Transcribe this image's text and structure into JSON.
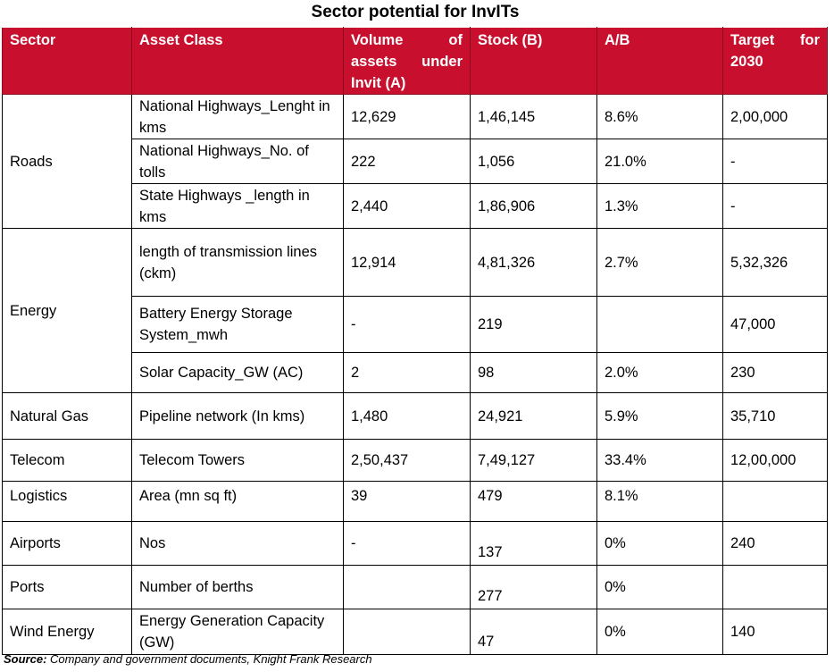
{
  "title": "Sector potential for InvITs",
  "headers": {
    "sector": "Sector",
    "asset_class": "Asset Class",
    "volume_line1": "Volume of",
    "volume_line2": "assets under",
    "volume_line3": "Invit (A)",
    "stock": "Stock (B)",
    "ratio": "A/B",
    "target_line1": "Target for",
    "target_line2": "2030"
  },
  "sectors": {
    "roads": "Roads",
    "energy": "Energy",
    "natural_gas": "Natural Gas",
    "telecom": "Telecom",
    "logistics": "Logistics",
    "airports": "Airports",
    "ports": "Ports",
    "wind_energy": "Wind Energy"
  },
  "rows": [
    {
      "asset": "National Highways_Lenght in kms",
      "volume": "12,629",
      "stock": "1,46,145",
      "ratio": "8.6%",
      "target": "2,00,000"
    },
    {
      "asset": "National Highways_No. of tolls",
      "volume": "222",
      "stock": "1,056",
      "ratio": "21.0%",
      "target": "-"
    },
    {
      "asset": "State Highways _length in kms",
      "volume": "2,440",
      "stock": "1,86,906",
      "ratio": "1.3%",
      "target": "-"
    },
    {
      "asset": "length of transmission lines (ckm)",
      "volume": "12,914",
      "stock": "4,81,326",
      "ratio": "2.7%",
      "target": "5,32,326"
    },
    {
      "asset": "Battery Energy Storage System_mwh",
      "volume": "-",
      "stock": "219",
      "ratio": "",
      "target": "47,000"
    },
    {
      "asset": "Solar Capacity_GW (AC)",
      "volume": "2",
      "stock": "98",
      "ratio": "2.0%",
      "target": "230"
    },
    {
      "asset": "Pipeline network (In kms)",
      "volume": "1,480",
      "stock": "24,921",
      "ratio": "5.9%",
      "target": "35,710"
    },
    {
      "asset": "Telecom Towers",
      "volume": "2,50,437",
      "stock": "7,49,127",
      "ratio": "33.4%",
      "target": "12,00,000"
    },
    {
      "asset": "Area (mn sq ft)",
      "volume": "39",
      "stock": "479",
      "ratio": "8.1%",
      "target": ""
    },
    {
      "asset": "Nos",
      "volume": "-",
      "stock": "137",
      "ratio": "0%",
      "target": "240"
    },
    {
      "asset": "Number of berths",
      "volume": "",
      "stock": "277",
      "ratio": "0%",
      "target": ""
    },
    {
      "asset": "Energy Generation Capacity (GW)",
      "volume": "",
      "stock": "47",
      "ratio": "0%",
      "target": "140"
    }
  ],
  "footer": {
    "label": "Source:",
    "text": " Company and government documents, Knight Frank Research"
  }
}
